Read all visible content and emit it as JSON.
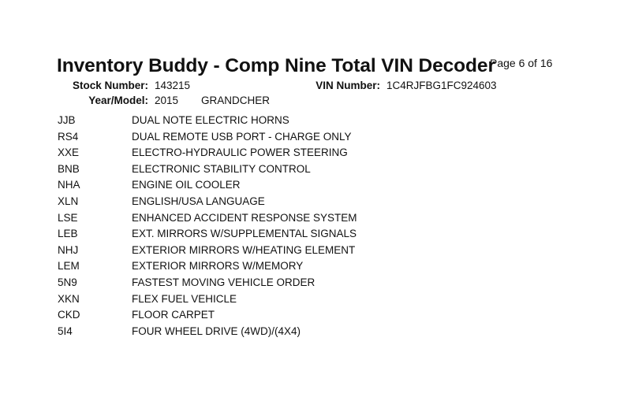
{
  "header": {
    "title": "Inventory Buddy - Comp Nine Total VIN Decoder",
    "page": "Page 6 of 16",
    "stock_label": "Stock Number:",
    "stock_value": "143215",
    "vin_label": "VIN Number:",
    "vin_value": "1C4RJFBG1FC924603",
    "year_model_label": "Year/Model:",
    "year": "2015",
    "model": "GRANDCHER"
  },
  "options": [
    {
      "code": "JJB",
      "desc": "DUAL NOTE ELECTRIC HORNS"
    },
    {
      "code": "RS4",
      "desc": "DUAL REMOTE USB PORT - CHARGE ONLY"
    },
    {
      "code": "XXE",
      "desc": "ELECTRO-HYDRAULIC POWER STEERING"
    },
    {
      "code": "BNB",
      "desc": "ELECTRONIC STABILITY CONTROL"
    },
    {
      "code": "NHA",
      "desc": "ENGINE OIL COOLER"
    },
    {
      "code": "XLN",
      "desc": "ENGLISH/USA LANGUAGE"
    },
    {
      "code": "LSE",
      "desc": "ENHANCED ACCIDENT RESPONSE SYSTEM"
    },
    {
      "code": "LEB",
      "desc": "EXT. MIRRORS W/SUPPLEMENTAL SIGNALS"
    },
    {
      "code": "NHJ",
      "desc": "EXTERIOR MIRRORS W/HEATING ELEMENT"
    },
    {
      "code": "LEM",
      "desc": "EXTERIOR MIRRORS W/MEMORY"
    },
    {
      "code": "5N9",
      "desc": "FASTEST MOVING VEHICLE ORDER"
    },
    {
      "code": "XKN",
      "desc": "FLEX FUEL VEHICLE"
    },
    {
      "code": "CKD",
      "desc": "FLOOR CARPET"
    },
    {
      "code": "5I4",
      "desc": "FOUR WHEEL DRIVE (4WD)/(4X4)"
    }
  ]
}
